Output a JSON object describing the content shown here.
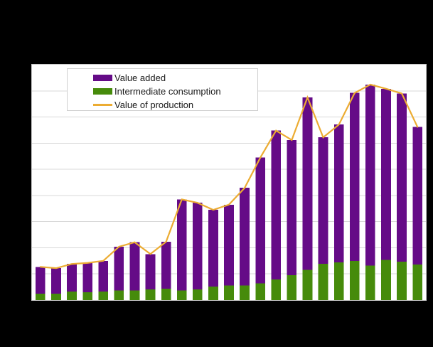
{
  "canvas": {
    "background_color": "#000000",
    "plot_background_color": "#ffffff",
    "plot_border_color": "#c9c9c9"
  },
  "legend": {
    "items": [
      {
        "label": "Value added",
        "swatch": "rect",
        "color": "#650b87"
      },
      {
        "label": "Intermediate consumption",
        "swatch": "rect",
        "color": "#468b0b"
      },
      {
        "label": "Value of production",
        "swatch": "line",
        "color": "#ecac32"
      }
    ]
  },
  "chart_data": {
    "type": "bar",
    "variant": "stacked-bars-with-line-overlay",
    "title": "",
    "xlabel": "",
    "ylabel": "",
    "n_bars": 25,
    "x_tick_labels_visible": false,
    "y_tick_labels_visible": false,
    "y_unit": "gridline-intervals (axis unlabeled in image)",
    "ylim": [
      0,
      9
    ],
    "gridlines": {
      "horizontal": true,
      "intervals": 9,
      "color": "#d9d9d9"
    },
    "legend_position": "top-left-inside",
    "series": [
      {
        "name": "Intermediate consumption",
        "role": "bar-stack-bottom",
        "color": "#468b0b",
        "values": [
          0.25,
          0.24,
          0.32,
          0.3,
          0.32,
          0.37,
          0.37,
          0.41,
          0.43,
          0.37,
          0.41,
          0.52,
          0.56,
          0.56,
          0.64,
          0.79,
          0.95,
          1.16,
          1.38,
          1.44,
          1.5,
          1.32,
          1.54,
          1.47,
          1.36
        ]
      },
      {
        "name": "Value added",
        "role": "bar-stack-top",
        "color": "#650b87",
        "values": [
          1.02,
          0.98,
          1.06,
          1.12,
          1.18,
          1.67,
          1.84,
          1.35,
          1.8,
          3.48,
          3.31,
          2.93,
          3.09,
          3.73,
          4.81,
          5.69,
          5.17,
          6.59,
          4.84,
          5.27,
          6.42,
          6.92,
          6.54,
          6.43,
          5.26
        ]
      },
      {
        "name": "Value of production",
        "role": "line",
        "color": "#ecac32",
        "values": [
          1.27,
          1.22,
          1.38,
          1.42,
          1.5,
          2.04,
          2.21,
          1.76,
          2.23,
          3.85,
          3.72,
          3.45,
          3.65,
          4.29,
          5.45,
          6.48,
          6.12,
          7.75,
          6.22,
          6.71,
          7.92,
          8.24,
          8.08,
          7.9,
          6.62
        ]
      }
    ]
  }
}
